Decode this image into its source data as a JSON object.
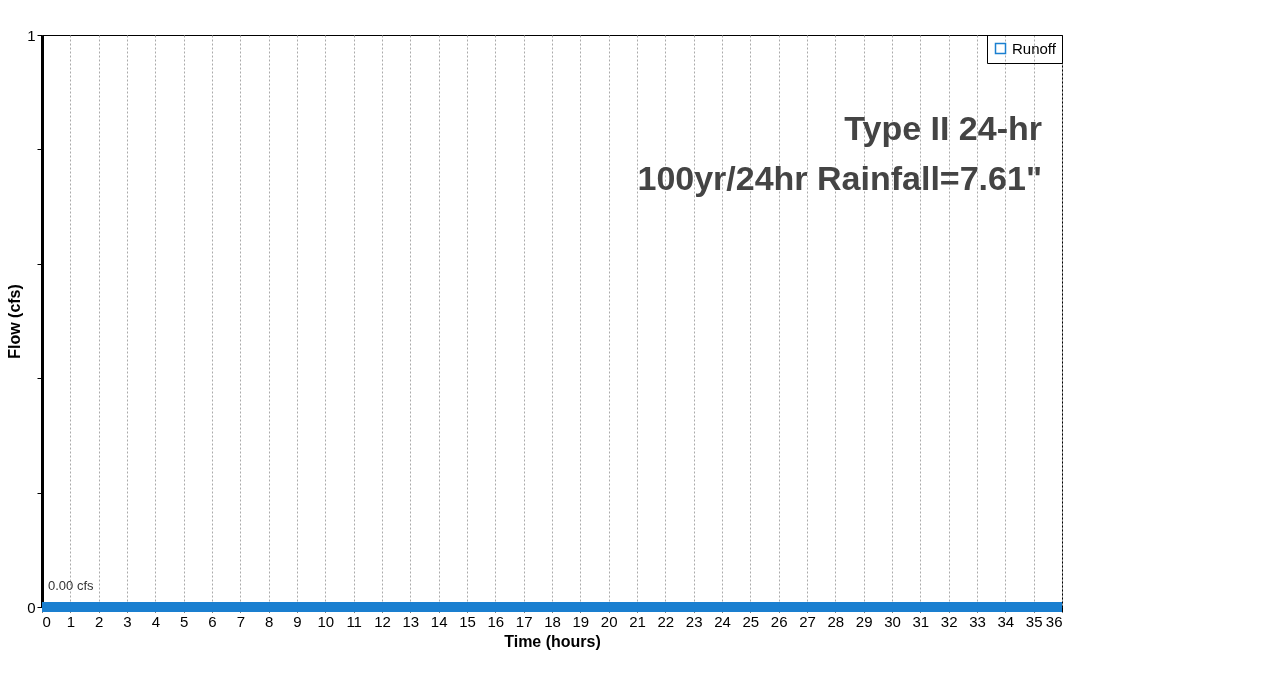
{
  "chart_data": {
    "type": "line",
    "title": "Type II 24-hr",
    "subtitle": "100yr/24hr Rainfall=7.61\"",
    "xlabel": "Time  (hours)",
    "ylabel": "Flow  (cfs)",
    "x": [
      0,
      36
    ],
    "series": [
      {
        "name": "Runoff",
        "color": "#1a7fd0",
        "values": [
          0,
          0
        ]
      }
    ],
    "annotations": [
      "0.00 cfs"
    ],
    "xlim": [
      0,
      36
    ],
    "xticks": [
      0,
      1,
      2,
      3,
      4,
      5,
      6,
      7,
      8,
      9,
      10,
      11,
      12,
      13,
      14,
      15,
      16,
      17,
      18,
      19,
      20,
      21,
      22,
      23,
      24,
      25,
      26,
      27,
      28,
      29,
      30,
      31,
      32,
      33,
      34,
      35,
      36
    ],
    "ylim": [
      0,
      1
    ],
    "yticks": [
      0,
      {
        "value": 0.2,
        "label": null
      },
      {
        "value": 0.4,
        "label": null
      },
      {
        "value": 0.6,
        "label": null
      },
      {
        "value": 0.8,
        "label": null
      },
      1
    ],
    "grid": "x",
    "legend": "top right"
  }
}
